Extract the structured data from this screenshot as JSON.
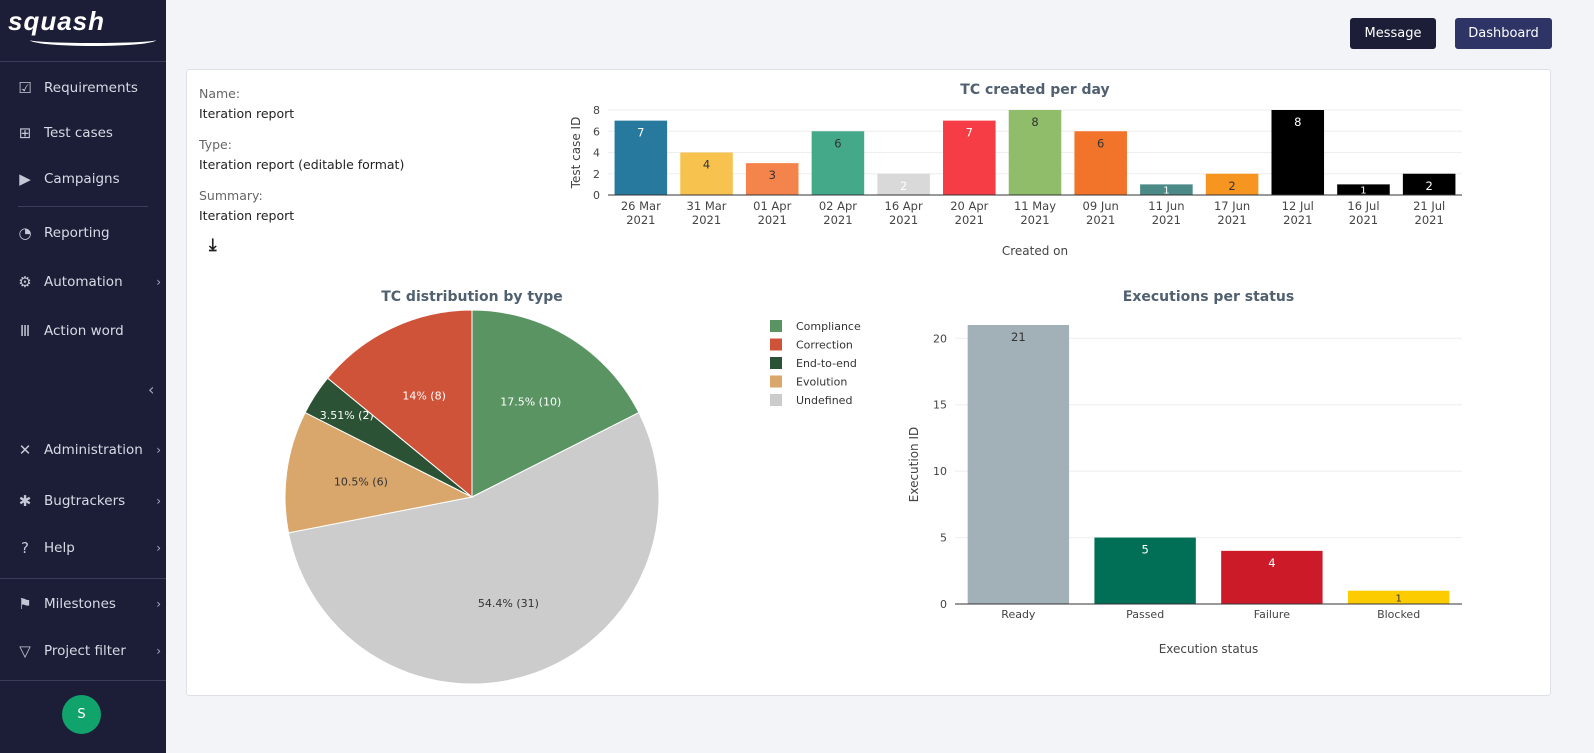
{
  "sidebar": {
    "logo": "squash",
    "items": [
      {
        "label": "Requirements",
        "icon": "checkbox-icon"
      },
      {
        "label": "Test cases",
        "icon": "tree-icon"
      },
      {
        "label": "Campaigns",
        "icon": "play-circle-icon"
      },
      {
        "label": "Reporting",
        "icon": "pie-icon"
      },
      {
        "label": "Automation",
        "icon": "robot-icon"
      },
      {
        "label": "Action word",
        "icon": "library-icon"
      },
      {
        "label": "Administration",
        "icon": "tools-icon"
      },
      {
        "label": "Bugtrackers",
        "icon": "bug-icon"
      },
      {
        "label": "Help",
        "icon": "help-icon"
      },
      {
        "label": "Milestones",
        "icon": "flag-icon"
      },
      {
        "label": "Project filter",
        "icon": "filter-icon"
      }
    ],
    "avatar": "S"
  },
  "header": {
    "message": "Message",
    "dashboard": "Dashboard"
  },
  "info": {
    "name_label": "Name:",
    "name": "Iteration report",
    "type_label": "Type:",
    "type": "Iteration report (editable format)",
    "summary_label": "Summary:",
    "summary": "Iteration report"
  },
  "chart_data": [
    {
      "type": "bar",
      "title": "TC created per day",
      "xlabel": "Created on",
      "ylabel": "Test case ID",
      "ylim": [
        0,
        8
      ],
      "yticks": [
        0,
        2,
        4,
        6,
        8
      ],
      "grid": true,
      "categories": [
        "26 Mar 2021",
        "31 Mar 2021",
        "01 Apr 2021",
        "02 Apr 2021",
        "16 Apr 2021",
        "20 Apr 2021",
        "11 May 2021",
        "09 Jun 2021",
        "11 Jun 2021",
        "17 Jun 2021",
        "12 Jul 2021",
        "16 Jul 2021",
        "21 Jul 2021"
      ],
      "values": [
        7,
        4,
        3,
        6,
        2,
        7,
        8,
        6,
        1,
        2,
        8,
        1,
        2
      ],
      "colors": [
        "#27799e",
        "#f7c24e",
        "#f5844c",
        "#43a989",
        "#d9d9d9",
        "#f63d45",
        "#8fbd6a",
        "#f2742b",
        "#4b8a86",
        "#f6951f",
        "#000000",
        "#000000",
        "#000000"
      ]
    },
    {
      "type": "pie",
      "title": "TC distribution by type",
      "legend": "right",
      "slices": [
        {
          "name": "Compliance",
          "value": 10,
          "label": "17.5% (10)",
          "color": "#5a9463"
        },
        {
          "name": "Undefined",
          "value": 31,
          "label": "54.4% (31)",
          "color": "#cccccc"
        },
        {
          "name": "Evolution",
          "value": 6,
          "label": "10.5% (6)",
          "color": "#d9a76c"
        },
        {
          "name": "End-to-end",
          "value": 2,
          "label": "3.51% (2)",
          "color": "#2b5234"
        },
        {
          "name": "Correction",
          "value": 8,
          "label": "14% (8)",
          "color": "#cf5339"
        }
      ],
      "legend_order": [
        "Compliance",
        "Correction",
        "End-to-end",
        "Evolution",
        "Undefined"
      ]
    },
    {
      "type": "bar",
      "title": "Executions per status",
      "xlabel": "Execution status",
      "ylabel": "Execution ID",
      "ylim": [
        0,
        21
      ],
      "yticks": [
        0,
        5,
        10,
        15,
        20
      ],
      "grid": true,
      "categories": [
        "Ready",
        "Passed",
        "Failure",
        "Blocked"
      ],
      "values": [
        21,
        5,
        4,
        1
      ],
      "colors": [
        "#a2b0b8",
        "#006f55",
        "#cc1a28",
        "#fccb00"
      ]
    }
  ]
}
